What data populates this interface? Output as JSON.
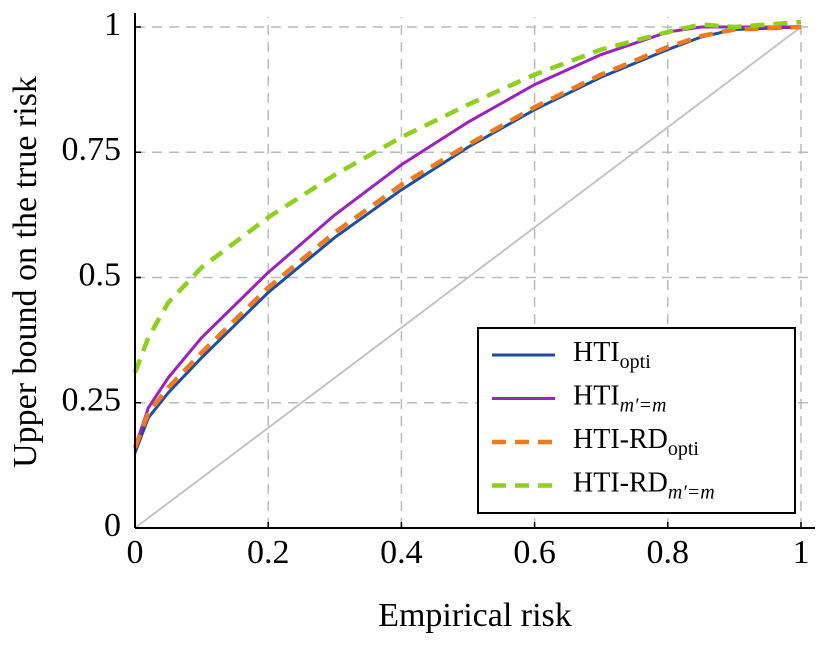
{
  "chart_data": {
    "type": "line",
    "xlabel": "Empirical risk",
    "ylabel": "Upper bound on the true risk",
    "x": [
      0,
      0.02,
      0.05,
      0.1,
      0.2,
      0.3,
      0.4,
      0.5,
      0.6,
      0.7,
      0.8,
      0.85,
      0.9,
      1
    ],
    "series": [
      {
        "name": "HTI",
        "subscript": "opti",
        "color": "#1f4e9e",
        "style": "solid",
        "values": [
          0.15,
          0.22,
          0.27,
          0.34,
          0.47,
          0.58,
          0.675,
          0.76,
          0.835,
          0.9,
          0.955,
          0.98,
          0.995,
          1
        ]
      },
      {
        "name": "HTI",
        "subscript": "m′=m",
        "color": "#9b22bd",
        "style": "solid",
        "values": [
          0.16,
          0.24,
          0.3,
          0.38,
          0.51,
          0.625,
          0.725,
          0.81,
          0.885,
          0.945,
          0.99,
          1,
          1,
          1
        ]
      },
      {
        "name": "HTI-RD",
        "subscript": "opti",
        "color": "#f07a1e",
        "style": "dashed",
        "values": [
          0.16,
          0.23,
          0.28,
          0.35,
          0.48,
          0.59,
          0.685,
          0.765,
          0.84,
          0.905,
          0.96,
          0.982,
          0.995,
          1
        ]
      },
      {
        "name": "HTI-RD",
        "subscript": "m′=m",
        "color": "#8fcf1f",
        "style": "dashed",
        "values": [
          0.31,
          0.38,
          0.45,
          0.52,
          0.62,
          0.705,
          0.78,
          0.845,
          0.905,
          0.955,
          0.99,
          1.005,
          1,
          1.01
        ]
      }
    ],
    "xlim": [
      0,
      1
    ],
    "ylim": [
      0,
      1
    ],
    "xticks": [
      0,
      0.2,
      0.4,
      0.6,
      0.8,
      1
    ],
    "yticks": [
      0,
      0.25,
      0.5,
      0.75,
      1
    ],
    "grid": true,
    "legend": "lower right"
  }
}
